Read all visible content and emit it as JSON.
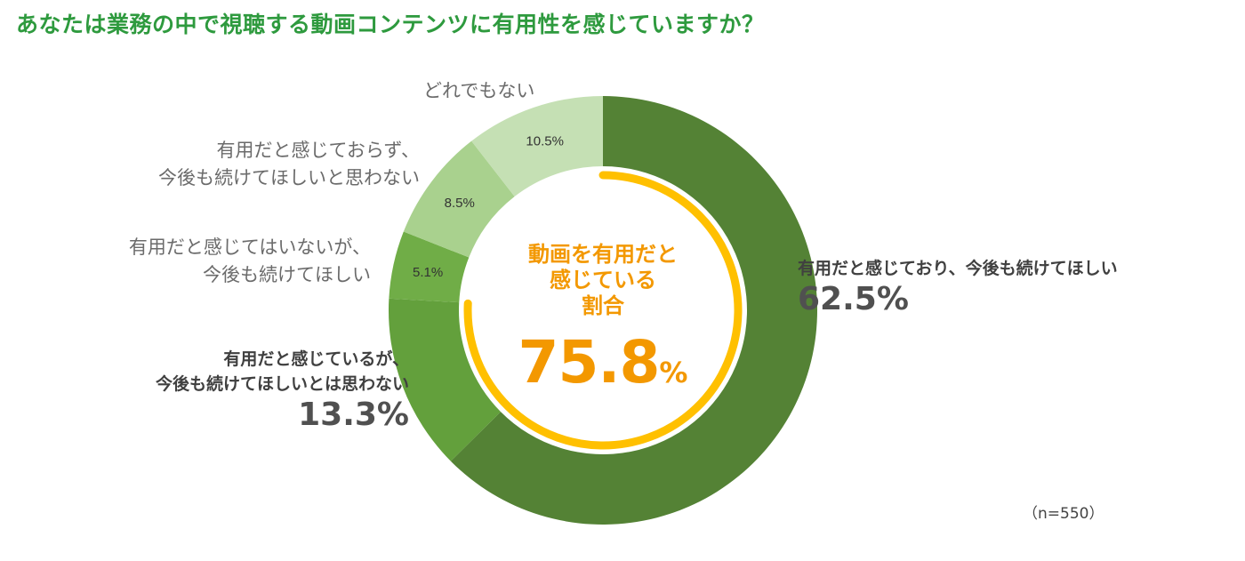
{
  "title": "あなたは業務の中で視聴する動画コンテンツに有用性を感じていますか？",
  "sample_size": "（n=550）",
  "center": {
    "lines": [
      "動画を有用だと",
      "感じている",
      "割合"
    ],
    "value": "75.8",
    "unit": "%",
    "value_numeric": 75.8
  },
  "colors": {
    "slice_1": "#548235",
    "slice_2": "#63a03c",
    "slice_3": "#70ad47",
    "slice_4": "#a9d18e",
    "slice_5": "#c5e0b4",
    "ring_accent": "#ffc000",
    "title": "#2e9a3e",
    "center_text": "#f39800"
  },
  "chart_data": {
    "type": "donut",
    "start": "top",
    "direction": "clockwise",
    "slices": [
      {
        "lines": [
          "有用だと感じており、今後も続けてほしい"
        ],
        "value": 62.5,
        "value_label": "62.5%",
        "color_key": "slice_1"
      },
      {
        "lines": [
          "有用だと感じているが、",
          "今後も続けてほしいとは思わない"
        ],
        "value": 13.3,
        "value_label": "13.3%",
        "color_key": "slice_2"
      },
      {
        "lines": [
          "有用だと感じてはいないが、",
          "今後も続けてほしい"
        ],
        "value": 5.1,
        "value_label": "5.1%",
        "color_key": "slice_3"
      },
      {
        "lines": [
          "有用だと感じておらず、",
          "今後も続けてほしいと思わない"
        ],
        "value": 8.5,
        "value_label": "8.5%",
        "color_key": "slice_4"
      },
      {
        "lines": [
          "どれでもない"
        ],
        "value": 10.5,
        "value_label": "10.5%",
        "color_key": "slice_5"
      }
    ]
  }
}
